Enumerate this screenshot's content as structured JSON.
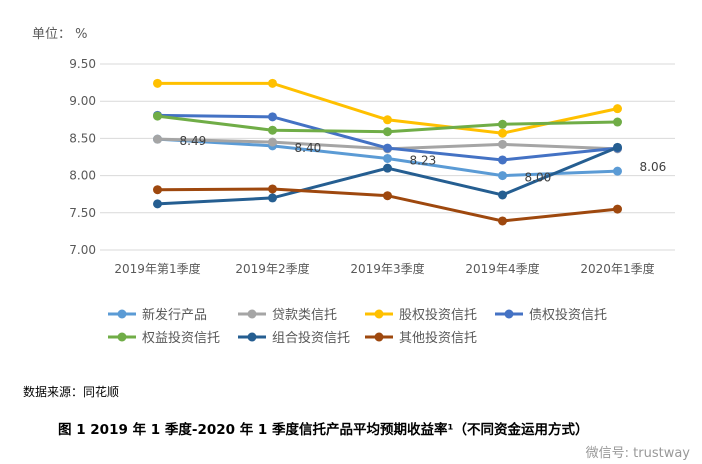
{
  "chart_data": {
    "type": "line",
    "unit_label": "单位：  %",
    "categories": [
      "2019年第1季度",
      "2019年2季度",
      "2019年3季度",
      "2019年4季度",
      "2020年1季度"
    ],
    "ylim": [
      7.0,
      9.5
    ],
    "yticks": [
      "7.00",
      "7.50",
      "8.00",
      "8.50",
      "9.00",
      "9.50"
    ],
    "grid": true,
    "legend_position": "bottom",
    "series": [
      {
        "name": "新发行产品",
        "color": "#5B9BD5",
        "values": [
          8.49,
          8.4,
          8.23,
          8.0,
          8.06
        ],
        "labels": [
          "8.49",
          "8.40",
          "8.23",
          "8.00",
          "8.06"
        ]
      },
      {
        "name": "贷款类信托",
        "color": "#A5A5A5",
        "values": [
          8.49,
          8.45,
          8.36,
          8.42,
          8.36
        ]
      },
      {
        "name": "股权投资信托",
        "color": "#FFC000",
        "values": [
          9.24,
          9.24,
          8.75,
          8.57,
          8.9
        ]
      },
      {
        "name": "债权投资信托",
        "color": "#4472C4",
        "values": [
          8.81,
          8.79,
          8.37,
          8.21,
          8.37
        ]
      },
      {
        "name": "权益投资信托",
        "color": "#70AD47",
        "values": [
          8.8,
          8.61,
          8.59,
          8.69,
          8.72
        ]
      },
      {
        "name": "组合投资信托",
        "color": "#255E91",
        "values": [
          7.62,
          7.7,
          8.1,
          7.74,
          8.38
        ]
      },
      {
        "name": "其他投资信托",
        "color": "#9E480E",
        "values": [
          7.81,
          7.82,
          7.73,
          7.39,
          7.55
        ]
      }
    ]
  },
  "source": "数据来源：同花顺",
  "caption": "图 1   2019 年 1 季度-2020 年 1 季度信托产品平均预期收益率¹（不同资金运用方式）",
  "watermark": "微信号: trustway"
}
